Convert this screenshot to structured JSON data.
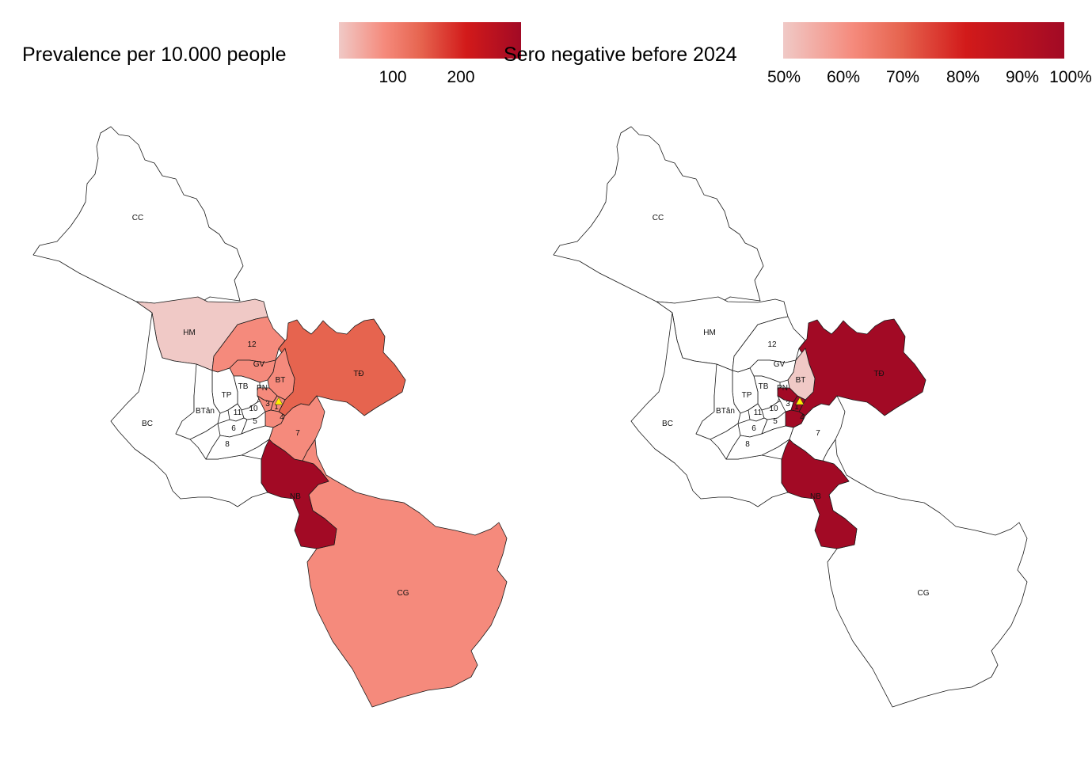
{
  "colors": {
    "low": "#f0c9c6",
    "mid1": "#f58a7c",
    "mid2": "#e6644f",
    "high": "#d21a1a",
    "max": "#a20a25",
    "none": "#ffffff",
    "marker": "#ffee00"
  },
  "left_panel": {
    "legend": {
      "title": "Prevalence per 10.000 people",
      "tick_labels": [
        "100",
        "200"
      ],
      "tick_values": [
        100,
        200
      ],
      "range": [
        10,
        280
      ]
    }
  },
  "right_panel": {
    "legend": {
      "title": "Sero negative before 2024",
      "tick_labels": [
        "50%",
        "60%",
        "70%",
        "80%",
        "90%",
        "100%"
      ],
      "tick_values": [
        50,
        60,
        70,
        80,
        90,
        100
      ],
      "range": [
        50,
        100
      ]
    }
  },
  "district_labels": {
    "CC": "CC",
    "HM": "HM",
    "12": "12",
    "GV": "GV",
    "BT": "BT",
    "TD": "TĐ",
    "PN": "PN",
    "TB": "TB",
    "TP": "TP",
    "BTan": "BTân",
    "BC": "BC",
    "11": "11",
    "10": "10",
    "3": "3",
    "1": "1",
    "4": "4",
    "6": "6",
    "5": "5",
    "8": "8",
    "7": "7",
    "NB": "NB",
    "CG": "CG"
  },
  "chart_data": [
    {
      "type": "choropleth",
      "title": "Prevalence per 10.000 people",
      "legend_ticks": [
        100,
        200
      ],
      "fill_class": {
        "CC": "none",
        "HM": "low",
        "12": "mid1",
        "GV": "mid1",
        "BT": "mid1",
        "TD": "mid2",
        "PN": "mid1",
        "TB": "none",
        "TP": "none",
        "BTan": "none",
        "BC": "none",
        "11": "none",
        "10": "none",
        "3": "mid1",
        "1": "mid1",
        "4": "mid1",
        "6": "none",
        "5": "none",
        "8": "none",
        "7": "mid1",
        "NB": "max",
        "CG": "mid1"
      }
    },
    {
      "type": "choropleth",
      "title": "Sero negative before 2024",
      "legend_ticks": [
        "50%",
        "60%",
        "70%",
        "80%",
        "90%",
        "100%"
      ],
      "fill_class": {
        "CC": "none",
        "HM": "none",
        "12": "none",
        "GV": "none",
        "BT": "low",
        "TD": "max",
        "PN": "max",
        "TB": "none",
        "TP": "none",
        "BTan": "none",
        "BC": "none",
        "11": "none",
        "10": "none",
        "3": "none",
        "1": "max",
        "4": "max",
        "6": "none",
        "5": "none",
        "8": "none",
        "7": "none",
        "NB": "max",
        "CG": "none"
      }
    }
  ]
}
